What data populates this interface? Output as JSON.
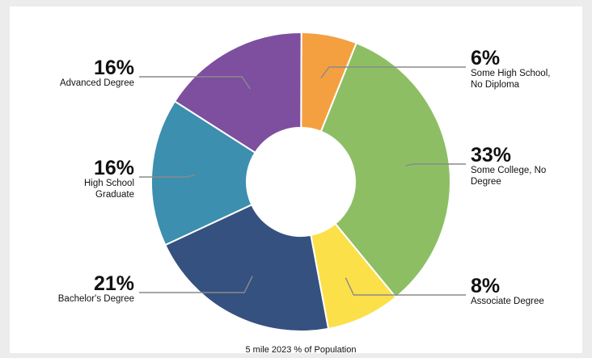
{
  "chart_data": {
    "type": "pie",
    "variant": "donut",
    "title": "",
    "caption": "5 mile 2023 % of Population",
    "slices": [
      {
        "label": [
          "Some High School,",
          "No Diploma"
        ],
        "percent_label": "6%",
        "value": 6,
        "color": "#f4a040",
        "side": "right"
      },
      {
        "label": [
          "Some College, No",
          "Degree"
        ],
        "percent_label": "33%",
        "value": 33,
        "color": "#8dbe64",
        "side": "right"
      },
      {
        "label": [
          "Associate Degree"
        ],
        "percent_label": "8%",
        "value": 8,
        "color": "#fbe04a",
        "side": "right"
      },
      {
        "label": [
          "Bachelor's Degree"
        ],
        "percent_label": "21%",
        "value": 21,
        "color": "#35517f",
        "side": "left"
      },
      {
        "label": [
          "High School",
          "Graduate"
        ],
        "percent_label": "16%",
        "value": 16,
        "color": "#3c8fae",
        "side": "left"
      },
      {
        "label": [
          "Advanced Degree"
        ],
        "percent_label": "16%",
        "value": 16,
        "color": "#7d4f9e",
        "side": "left"
      }
    ]
  }
}
